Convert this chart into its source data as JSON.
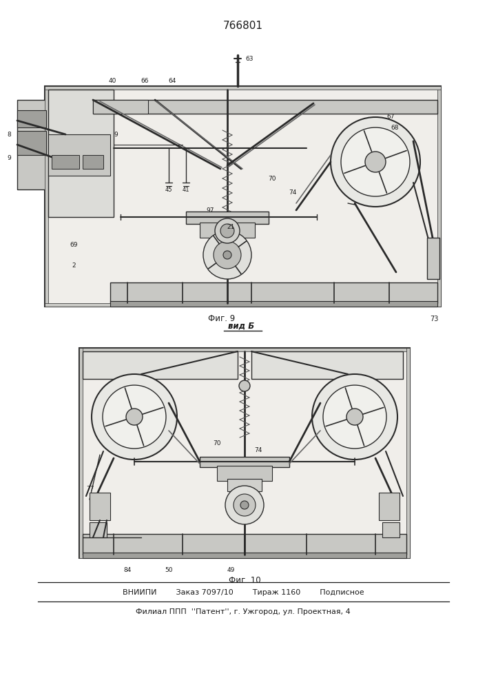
{
  "patent_number": "766801",
  "fig9_label": "Фиг. 9",
  "fig9_num": "73",
  "fig10_label": "Фиг. 10",
  "vid_b_label": "вид Б",
  "footer_line1": "ВНИИПИ        Заказ 7097/10        Тираж 1160        Подписное",
  "footer_line2": "Филиал ППП  ''Патент'', г. Ужгород, ул. Проектная, 4",
  "bg_color": "#ffffff",
  "line_color": "#2a2a2a",
  "text_color": "#1a1a1a",
  "drawing_fill": "#f0eeea",
  "gray_fill": "#c8c8c4",
  "dark_fill": "#a0a09c"
}
